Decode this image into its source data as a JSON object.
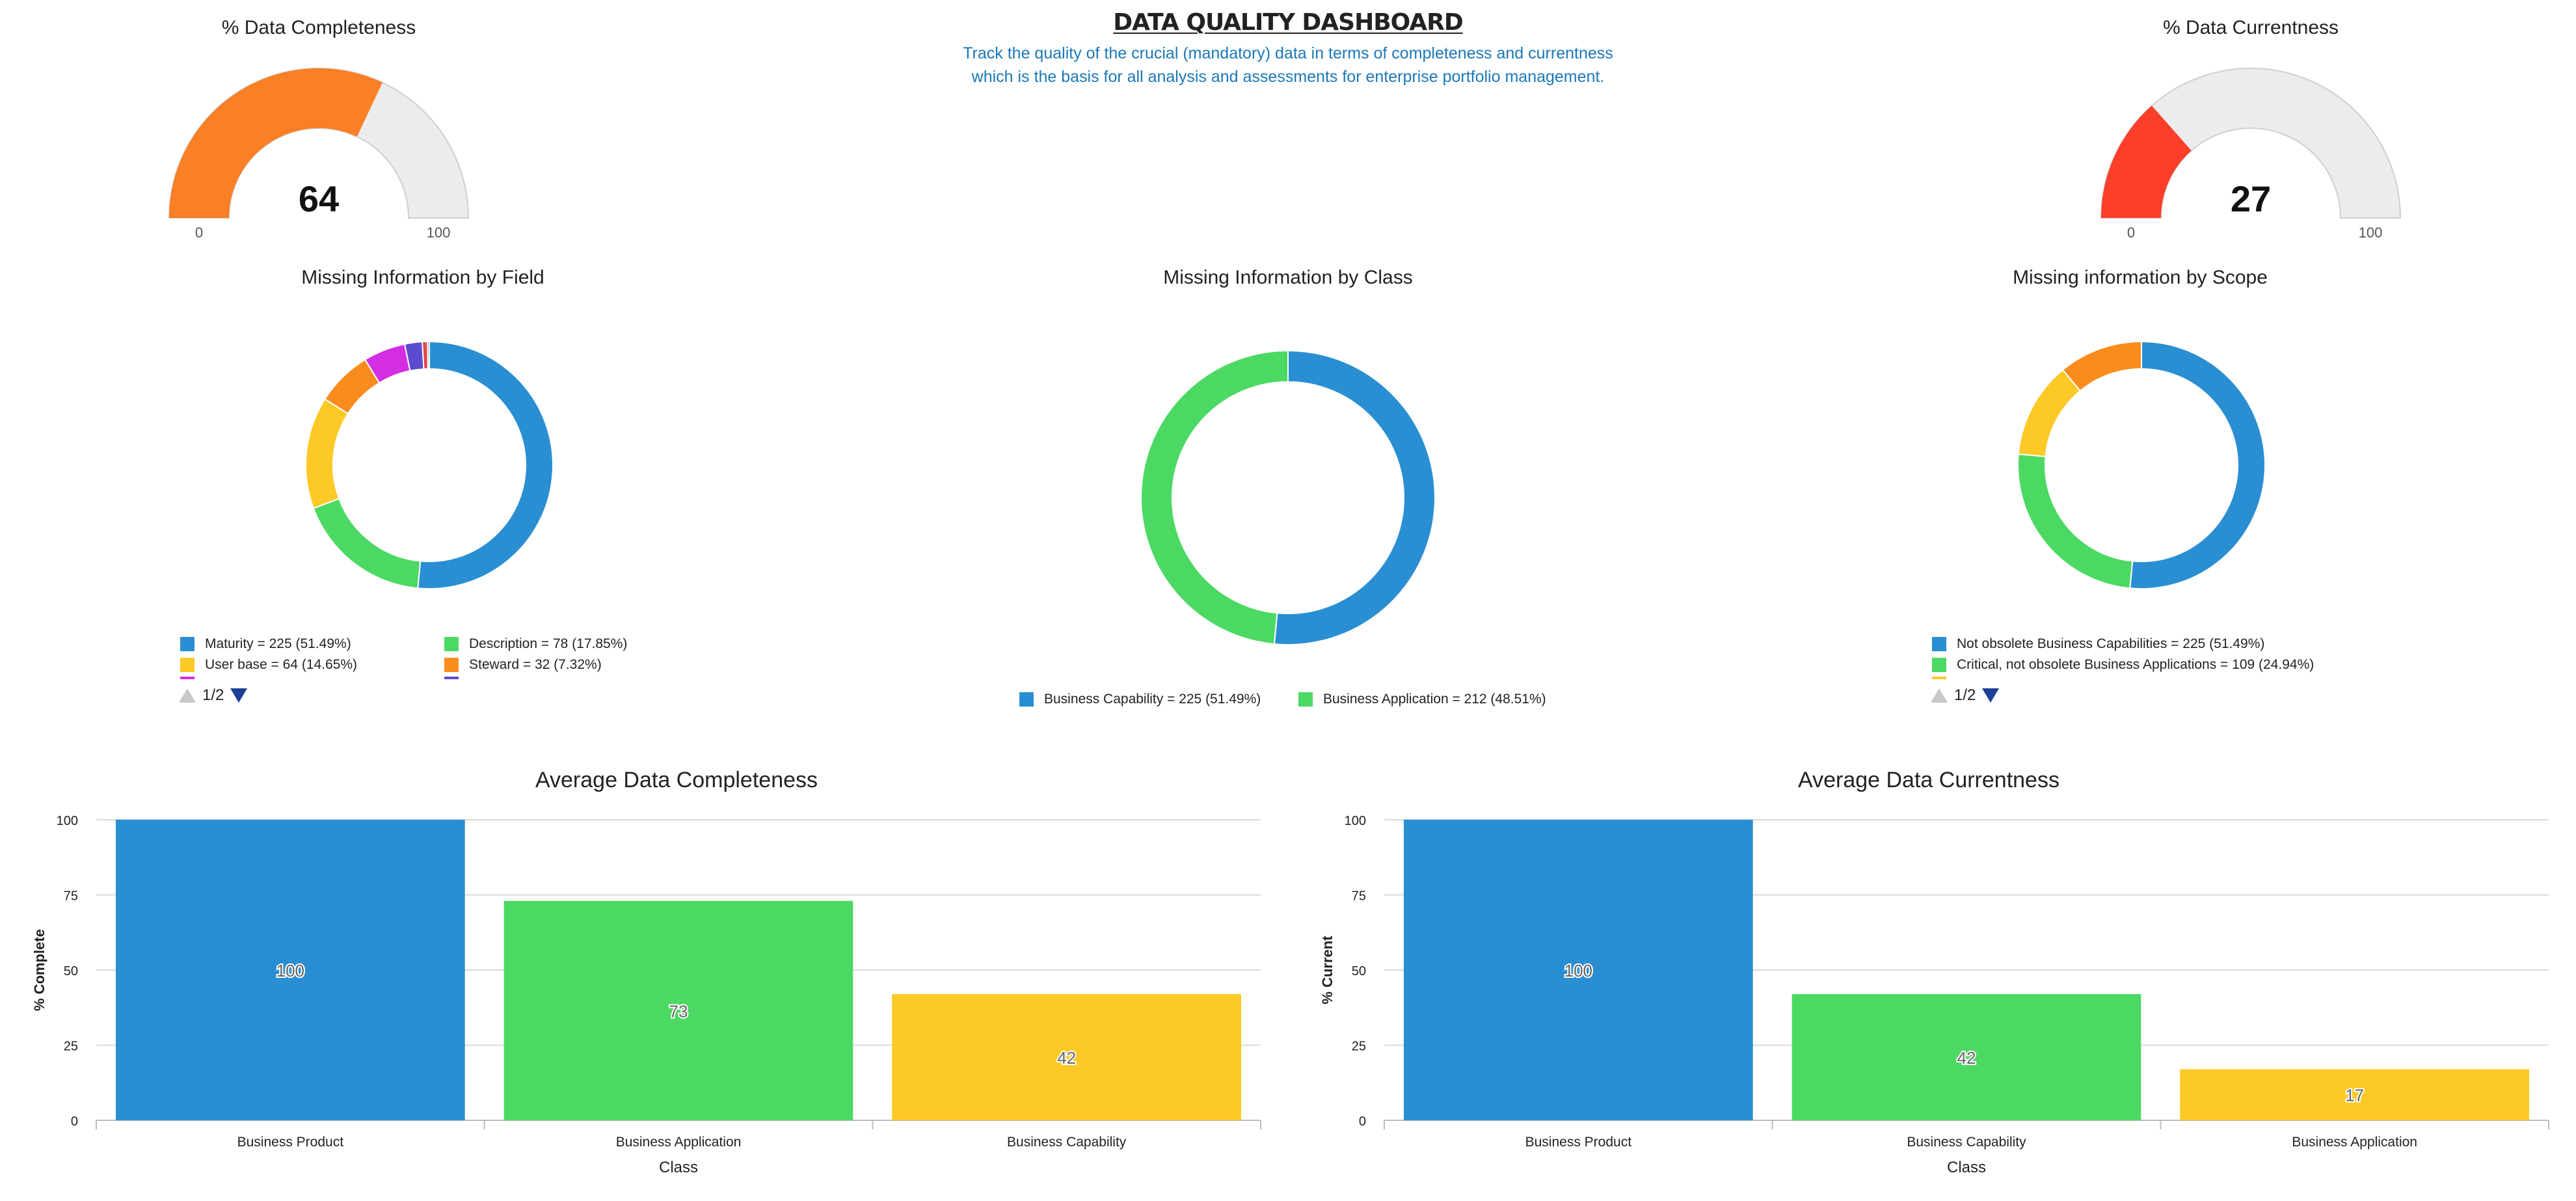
{
  "header": {
    "title": "DATA QUALITY DASHBOARD",
    "subtitle_line1": "Track the quality of the crucial (mandatory) data in terms of completeness and currentness",
    "subtitle_line2": "which is the basis for all analysis and assessments for enterprise portfolio management."
  },
  "chart_data": [
    {
      "type": "gauge",
      "title": "% Data Completeness",
      "value": 64,
      "min": 0,
      "max": 100,
      "color": "#fa7f25",
      "track_color": "#ececec",
      "value_label": "64",
      "min_label": "0",
      "max_label": "100"
    },
    {
      "type": "gauge",
      "title": "% Data Currentness",
      "value": 27,
      "min": 0,
      "max": 100,
      "color": "#fc3e2a",
      "track_color": "#ececec",
      "value_label": "27",
      "min_label": "0",
      "max_label": "100"
    },
    {
      "type": "pie",
      "donut": true,
      "title": "Missing Information by Field",
      "slices": [
        {
          "label": "Maturity",
          "value": 225,
          "color": "#2a8fd2",
          "legend": "Maturity = 225 (51.49%)"
        },
        {
          "label": "Description",
          "value": 78,
          "color": "#4cd963",
          "legend": "Description = 78 (17.85%)"
        },
        {
          "label": "User base",
          "value": 64,
          "color": "#fdc926",
          "legend": "User base = 64 (14.65%)"
        },
        {
          "label": "Steward",
          "value": 32,
          "color": "#fa8c1e",
          "legend": "Steward = 32 (7.32%)"
        },
        {
          "label": "",
          "value": 24,
          "color": "#d42ee2",
          "legend": ""
        },
        {
          "label": "",
          "value": 10,
          "color": "#5b4bd3",
          "legend": ""
        },
        {
          "label": "",
          "value": 3,
          "color": "#e8434c",
          "legend": ""
        },
        {
          "label": "",
          "value": 1,
          "color": "#2a8fd2",
          "legend": ""
        }
      ],
      "legend_truncated_colors": [
        "#d42ee2",
        "#5b4bd3"
      ],
      "pager": "1/2"
    },
    {
      "type": "pie",
      "donut": true,
      "title": "Missing Information by Class",
      "slices": [
        {
          "label": "Business Capability",
          "value": 225,
          "color": "#2a8fd2",
          "legend": "Business Capability = 225 (51.49%)"
        },
        {
          "label": "Business Application",
          "value": 212,
          "color": "#4cd963",
          "legend": "Business Application = 212 (48.51%)"
        }
      ]
    },
    {
      "type": "pie",
      "donut": true,
      "title": "Missing information by Scope",
      "slices": [
        {
          "label": "Not obsolete Business Capabilities",
          "value": 225,
          "color": "#2a8fd2",
          "legend": "Not obsolete Business Capabilities = 225 (51.49%)"
        },
        {
          "label": "Critical, not obsolete Business Applications",
          "value": 109,
          "color": "#4cd963",
          "legend": "Critical, not obsolete Business Applications = 109 (24.94%)"
        },
        {
          "label": "",
          "value": 55,
          "color": "#fdc926",
          "legend": ""
        },
        {
          "label": "",
          "value": 48,
          "color": "#fa8c1e",
          "legend": ""
        }
      ],
      "legend_truncated_colors": [
        "#fdc926"
      ],
      "pager": "1/2"
    },
    {
      "type": "bar",
      "title": "Average Data Completeness",
      "categories": [
        "Business Product",
        "Business Application",
        "Business Capability"
      ],
      "values": [
        100,
        73,
        42
      ],
      "colors": [
        "#2a8fd2",
        "#4cd963",
        "#fdc926"
      ],
      "xlabel": "Class",
      "ylabel": "% Complete",
      "ylim": [
        0,
        100
      ],
      "yticks": [
        0,
        25,
        50,
        75,
        100
      ],
      "grid": true
    },
    {
      "type": "bar",
      "title": "Average Data Currentness",
      "categories": [
        "Business Product",
        "Business Capability",
        "Business Application"
      ],
      "values": [
        100,
        42,
        17
      ],
      "colors": [
        "#2a8fd2",
        "#4cd963",
        "#fdc926"
      ],
      "xlabel": "Class",
      "ylabel": "% Current",
      "ylim": [
        0,
        100
      ],
      "yticks": [
        0,
        25,
        50,
        75,
        100
      ],
      "grid": true
    }
  ]
}
